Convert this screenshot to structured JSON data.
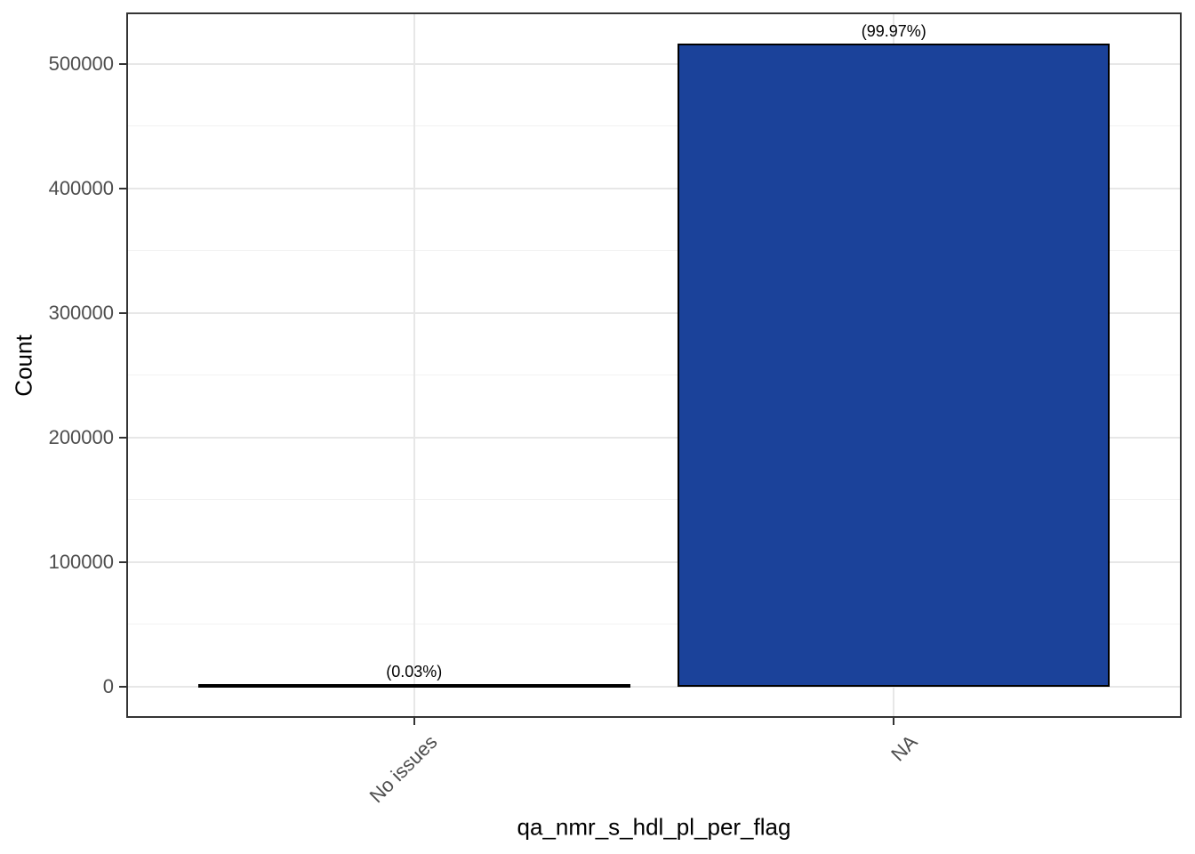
{
  "figure": {
    "x_axis_title": "qa_nmr_s_hdl_pl_per_flag",
    "y_axis_title": "Count"
  },
  "chart_data": {
    "type": "bar",
    "title": "",
    "xlabel": "qa_nmr_s_hdl_pl_per_flag",
    "ylabel": "Count",
    "categories": [
      "No issues",
      "NA"
    ],
    "values": [
      155,
      516400
    ],
    "bar_labels": [
      "(0.03%)",
      "(99.97%)"
    ],
    "percentages": [
      0.03,
      99.97
    ],
    "y_ticks": [
      0,
      100000,
      200000,
      300000,
      400000,
      500000
    ],
    "y_minor_ticks": [
      50000,
      150000,
      250000,
      350000,
      450000
    ],
    "ylim": [
      -25000,
      541400
    ],
    "grid": true,
    "legend": false,
    "colors": {
      "bar_fill": "#1b429a",
      "bar_stroke": "#000000",
      "panel_border": "#343434",
      "grid_major": "#e7e7e7",
      "grid_minor": "#f2f2f2",
      "axis_text": "#4d4d4d",
      "axis_title": "#000000",
      "tick_mark": "#333333",
      "annotation": "#000000",
      "background": "#ffffff"
    }
  }
}
